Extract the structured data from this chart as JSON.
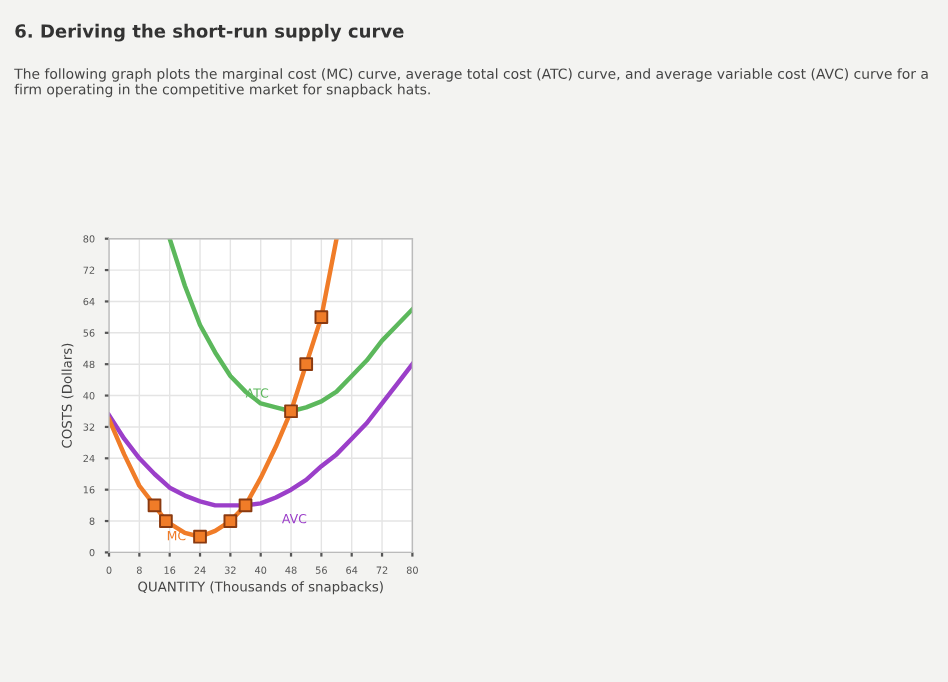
{
  "chart_data": {
    "type": "line",
    "title": "6. Deriving the short-run supply curve",
    "annotations": [
      "The following graph plots the marginal cost (MC) curve, average total cost (ATC) curve, and average variable cost (AVC) curve for a firm operating in the competitive market for snapback hats."
    ],
    "xlabel": "QUANTITY (Thousands of snapbacks)",
    "ylabel": "COSTS (Dollars)",
    "xlim": [
      0,
      80
    ],
    "ylim": [
      0,
      80
    ],
    "xticks": [
      0,
      8,
      16,
      24,
      32,
      40,
      48,
      56,
      64,
      72,
      80
    ],
    "yticks": [
      0,
      8,
      16,
      24,
      32,
      40,
      48,
      56,
      64,
      72,
      80
    ],
    "grid": true,
    "series": [
      {
        "name": "ATC",
        "color": "#5cb85c",
        "marker": "none",
        "x": [
          16,
          20,
          24,
          28,
          32,
          36,
          40,
          44,
          48,
          52,
          56,
          60,
          64,
          68,
          72,
          76,
          80
        ],
        "values": [
          80,
          68,
          58,
          51,
          45,
          41,
          38,
          37,
          36,
          37,
          38.5,
          41,
          45,
          49,
          54,
          58,
          62
        ]
      },
      {
        "name": "AVC",
        "color": "#9b3fc9",
        "marker": "none",
        "x": [
          0,
          4,
          8,
          12,
          16,
          20,
          24,
          28,
          32,
          36,
          40,
          44,
          48,
          52,
          56,
          60,
          64,
          68,
          72,
          76,
          80
        ],
        "values": [
          35,
          29,
          24,
          20,
          16.5,
          14.5,
          13,
          12,
          12,
          12,
          12.5,
          14,
          16,
          18.5,
          22,
          25,
          29,
          33,
          38,
          43,
          48
        ]
      },
      {
        "name": "MC",
        "color": "#f07c28",
        "marker": "none",
        "x": [
          0,
          4,
          8,
          12,
          15,
          20,
          24,
          28,
          32,
          36,
          40,
          44,
          48,
          52,
          56,
          60
        ],
        "values": [
          34,
          25,
          17,
          12,
          8,
          5,
          4,
          5.5,
          8,
          12,
          19,
          27,
          36,
          48,
          60,
          80
        ]
      },
      {
        "type": "scatter",
        "color": "#f07c28",
        "marker": "square",
        "x": [
          12,
          15,
          24,
          32,
          36,
          48,
          52,
          56
        ],
        "values": [
          12,
          8,
          4,
          8,
          12,
          36,
          48,
          60
        ]
      }
    ]
  }
}
